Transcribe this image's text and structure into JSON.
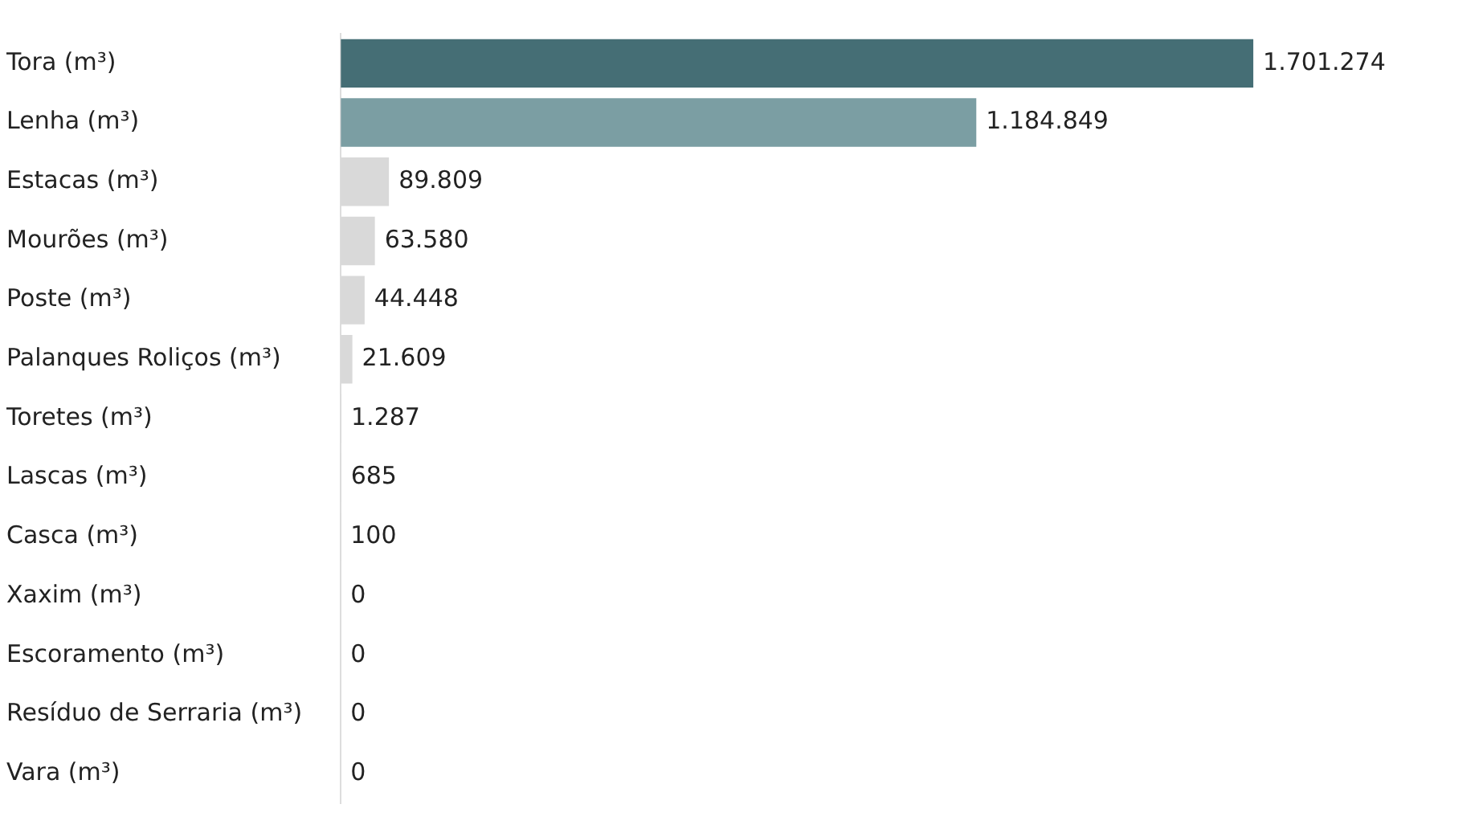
{
  "chart_data": {
    "type": "bar",
    "orientation": "horizontal",
    "tick_labels": "y",
    "grid": false,
    "legend": false,
    "categories": [
      "Tora (m³)",
      "Lenha (m³)",
      "Estacas (m³)",
      "Mourões (m³)",
      "Poste (m³)",
      "Palanques Roliços (m³)",
      "Toretes (m³)",
      "Lascas (m³)",
      "Casca (m³)",
      "Xaxim (m³)",
      "Escoramento (m³)",
      "Resíduo de Serraria (m³)",
      "Vara (m³)"
    ],
    "values": [
      1701274,
      1184849,
      89809,
      63580,
      44448,
      21609,
      1287,
      685,
      100,
      0,
      0,
      0,
      0
    ],
    "colors": [
      "#456e75",
      "#7b9ea3",
      "#d9d9d9",
      "#d9d9d9",
      "#d9d9d9",
      "#d9d9d9",
      "#d9d9d9",
      "#d9d9d9",
      "#d9d9d9",
      "#d9d9d9",
      "#d9d9d9",
      "#d9d9d9",
      "#d9d9d9"
    ],
    "value_labels": [
      "1.701.274",
      "1.184.849",
      "89.809",
      "63.580",
      "44.448",
      "21.609",
      "1.287",
      "685",
      "100",
      "0",
      "0",
      "0",
      "0"
    ]
  }
}
